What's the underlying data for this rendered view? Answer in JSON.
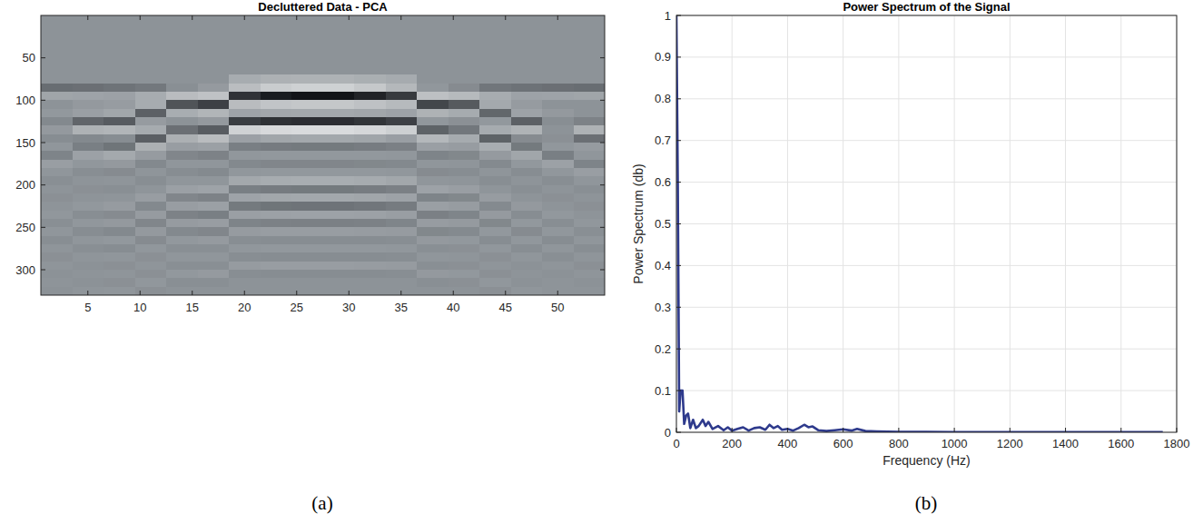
{
  "chart_data": [
    {
      "type": "heatmap",
      "title": "Decluttered Data - PCA",
      "label": "(a)",
      "x": [
        2,
        5,
        8,
        11,
        14,
        17,
        20,
        23,
        26,
        29,
        32,
        35,
        38,
        41,
        44,
        47,
        50,
        53
      ],
      "y": [
        5,
        15,
        25,
        35,
        45,
        55,
        65,
        75,
        85,
        95,
        105,
        115,
        125,
        135,
        145,
        155,
        165,
        175,
        185,
        195,
        205,
        215,
        225,
        235,
        245,
        255,
        265,
        275,
        285,
        295,
        305,
        315,
        325
      ],
      "cells": [
        [
          0,
          0,
          0,
          0,
          0,
          0,
          0,
          0,
          0,
          0,
          0,
          0,
          0,
          0,
          0,
          0,
          0,
          0
        ],
        [
          0,
          0,
          0,
          0,
          0,
          0,
          0,
          0,
          0,
          0,
          0,
          0,
          0,
          0,
          0,
          0,
          0,
          0
        ],
        [
          0,
          0,
          0,
          0,
          0,
          0,
          0,
          0,
          0,
          0,
          0,
          0,
          0,
          0,
          0,
          0,
          0,
          0
        ],
        [
          0,
          0,
          0,
          0,
          0,
          0,
          0,
          0,
          0,
          0,
          0,
          0,
          0,
          0,
          0,
          0,
          0,
          0
        ],
        [
          0,
          0,
          0,
          0,
          0,
          0,
          0,
          0,
          0,
          0,
          0,
          0,
          0,
          0,
          0,
          0,
          0,
          0
        ],
        [
          0,
          0,
          0,
          0,
          0,
          0,
          0,
          0,
          0,
          0,
          0,
          0,
          0,
          0,
          0,
          0,
          0,
          0
        ],
        [
          0,
          0,
          0,
          0,
          0,
          0,
          0,
          0,
          0,
          0,
          0,
          0,
          0,
          0,
          0,
          0,
          0,
          0
        ],
        [
          0,
          0,
          0,
          0,
          0,
          0,
          0.24,
          0.29,
          0.3,
          0.3,
          0.27,
          0.23,
          0,
          0,
          0,
          0,
          0,
          0
        ],
        [
          -0.3,
          -0.28,
          -0.25,
          -0.21,
          -0.03,
          0.07,
          0.41,
          0.55,
          0.6,
          0.6,
          0.51,
          0.36,
          0.04,
          -0.06,
          -0.23,
          -0.26,
          -0.28,
          -0.3
        ],
        [
          0.17,
          0.16,
          0.14,
          0.24,
          0.4,
          0.46,
          -0.76,
          -0.94,
          -1,
          -1,
          -0.88,
          -0.7,
          0.44,
          0.38,
          0.24,
          0.15,
          0.16,
          0.17
        ],
        [
          0,
          0.06,
          0.09,
          0.24,
          -0.5,
          -0.65,
          0.4,
          0.48,
          0.5,
          0.5,
          0.45,
          0.38,
          -0.6,
          -0.45,
          0.21,
          0.08,
          0,
          0
        ],
        [
          0.05,
          0.12,
          0.18,
          -0.4,
          0.25,
          0.33,
          0.16,
          0.19,
          0.2,
          0.2,
          0.18,
          0.15,
          0.3,
          0.23,
          -0.35,
          0.15,
          0.06,
          0
        ],
        [
          -0.08,
          -0.36,
          -0.44,
          0.08,
          0,
          0.06,
          -0.68,
          -0.77,
          -0.8,
          -0.8,
          -0.74,
          -0.65,
          0.04,
          -0.02,
          0.05,
          -0.4,
          -0.04,
          -0.13
        ],
        [
          0.06,
          0.3,
          0.33,
          0.23,
          -0.28,
          -0.43,
          0.61,
          0.68,
          0.7,
          0.7,
          0.66,
          0.59,
          -0.38,
          -0.22,
          0.23,
          0.31,
          0,
          0.3
        ],
        [
          -0.05,
          -0.08,
          -0.05,
          -0.41,
          0.28,
          0.4,
          0.13,
          0.18,
          0.2,
          0.2,
          0.17,
          0.11,
          0.36,
          0.23,
          -0.38,
          -0.06,
          -0.02,
          -0.28
        ],
        [
          0.03,
          -0.16,
          -0.24,
          0.28,
          0.1,
          0.13,
          -0.16,
          -0.19,
          -0.2,
          -0.2,
          -0.18,
          -0.15,
          0.12,
          0.09,
          0.25,
          -0.2,
          0.04,
          0.08
        ],
        [
          -0.12,
          0.14,
          0.21,
          0.08,
          -0.1,
          -0.13,
          0.04,
          0.05,
          0.05,
          0.05,
          0.05,
          0.04,
          -0.12,
          -0.09,
          0.07,
          0.18,
          -0.16,
          0.03
        ],
        [
          0.11,
          0.04,
          0.06,
          -0.08,
          0.03,
          0.03,
          -0.08,
          -0.1,
          -0.1,
          -0.1,
          -0.09,
          -0.08,
          0.03,
          0.02,
          -0.07,
          0.05,
          0.14,
          -0.12
        ],
        [
          0.03,
          -0.04,
          -0.06,
          0.02,
          -0.05,
          -0.07,
          0.04,
          0.05,
          0.05,
          0.05,
          0.05,
          0.04,
          -0.06,
          -0.05,
          0.02,
          -0.05,
          0.04,
          0.11
        ],
        [
          -0.03,
          0.01,
          0.02,
          -0.04,
          0.03,
          0.03,
          0.2,
          0.24,
          0.25,
          0.25,
          0.23,
          0.19,
          0.03,
          0.02,
          -0.04,
          0.01,
          -0.04,
          0.03
        ],
        [
          0.01,
          -0.02,
          -0.03,
          0.02,
          0.13,
          0.16,
          -0.16,
          -0.19,
          -0.2,
          -0.2,
          -0.18,
          -0.15,
          0.15,
          0.11,
          0.02,
          -0.03,
          0.01,
          -0.03
        ],
        [
          -0.02,
          0.01,
          0.02,
          0.1,
          -0.1,
          -0.13,
          0.16,
          0.19,
          0.2,
          0.2,
          0.18,
          0.15,
          -0.12,
          -0.09,
          0.09,
          0.01,
          -0.02,
          0.01
        ],
        [
          0.01,
          0.05,
          0.08,
          -0.08,
          0.1,
          0.13,
          -0.2,
          -0.24,
          -0.25,
          -0.25,
          -0.23,
          -0.19,
          0.12,
          0.09,
          -0.07,
          0.06,
          0.01,
          -0.02
        ],
        [
          0.04,
          -0.04,
          -0.06,
          0.08,
          -0.13,
          -0.16,
          0.12,
          0.14,
          0.15,
          0.15,
          0.14,
          0.11,
          -0.15,
          -0.11,
          0.07,
          -0.05,
          0.05,
          0.01
        ],
        [
          -0.03,
          0.04,
          0.06,
          -0.1,
          0.08,
          0.1,
          -0.12,
          -0.14,
          -0.15,
          -0.15,
          -0.14,
          -0.11,
          0.09,
          0.07,
          -0.09,
          0.05,
          -0.04,
          0.04
        ],
        [
          0.03,
          -0.05,
          -0.08,
          0.06,
          -0.08,
          -0.1,
          0.08,
          0.1,
          0.1,
          0.1,
          0.09,
          0.08,
          -0.09,
          -0.07,
          0.05,
          -0.06,
          0.04,
          -0.03
        ],
        [
          -0.04,
          0.03,
          0.05,
          -0.06,
          0.05,
          0.07,
          -0.04,
          -0.05,
          -0.05,
          -0.05,
          -0.05,
          -0.04,
          0.06,
          0.05,
          -0.05,
          0.04,
          -0.05,
          0.03
        ],
        [
          0.02,
          -0.03,
          -0.05,
          0.04,
          -0.03,
          -0.03,
          0.04,
          0.05,
          0.05,
          0.05,
          0.05,
          0.04,
          -0.03,
          -0.02,
          0.04,
          -0.04,
          0.03,
          -0.04
        ],
        [
          -0.02,
          0.02,
          0.03,
          -0.02,
          0.03,
          0.03,
          -0.04,
          -0.05,
          -0.05,
          -0.05,
          -0.05,
          -0.04,
          0.03,
          0.02,
          -0.02,
          0.03,
          -0.03,
          0.02
        ],
        [
          0.02,
          -0.01,
          -0.02,
          0.02,
          -0.03,
          -0.03,
          0.08,
          0.1,
          0.1,
          0.1,
          0.09,
          0.08,
          -0.03,
          -0.02,
          0.02,
          -0.01,
          0.02,
          -0.02
        ],
        [
          -0.01,
          0.01,
          0.02,
          -0.02,
          0.05,
          0.07,
          -0.04,
          -0.05,
          -0.05,
          -0.05,
          -0.05,
          -0.04,
          0.06,
          0.05,
          -0.02,
          0.01,
          -0.01,
          0.02
        ],
        [
          0.01,
          -0.01,
          -0.02,
          0.04,
          -0.03,
          -0.03,
          0,
          0,
          0,
          0,
          0,
          0,
          -0.03,
          -0.02,
          0.04,
          -0.01,
          0.01,
          -0.01
        ],
        [
          -0.01,
          0.02,
          0.03,
          -0.02,
          0,
          0,
          0,
          0,
          0,
          0,
          0,
          0,
          0,
          0,
          -0.02,
          0.03,
          0.01,
          0.01
        ]
      ],
      "color_range": [
        -1,
        1
      ],
      "xlim": [
        0.5,
        54.5
      ],
      "ylim": [
        0,
        330
      ],
      "xticks": [
        5,
        10,
        15,
        20,
        25,
        30,
        35,
        40,
        45,
        50
      ],
      "yticks": [
        50,
        100,
        150,
        200,
        250,
        300
      ],
      "grid": false
    },
    {
      "type": "line",
      "title": "Power Spectrum of the Signal",
      "label": "(b)",
      "x_label": "Frequency (Hz)",
      "y_label": "Power Spectrum (db)",
      "x": [
        0,
        5,
        10,
        15,
        22,
        28,
        35,
        42,
        50,
        60,
        70,
        80,
        95,
        105,
        115,
        130,
        150,
        170,
        185,
        200,
        220,
        240,
        260,
        280,
        300,
        320,
        335,
        350,
        365,
        380,
        400,
        420,
        440,
        460,
        475,
        490,
        510,
        540,
        570,
        600,
        630,
        650,
        680,
        720,
        800,
        900,
        1000,
        1200,
        1400,
        1600,
        1750
      ],
      "values": [
        1,
        0.6,
        0.05,
        0.1,
        0.1,
        0.02,
        0.04,
        0.045,
        0.01,
        0.03,
        0.01,
        0.015,
        0.03,
        0.015,
        0.025,
        0.008,
        0.015,
        0.005,
        0.012,
        0.004,
        0.008,
        0.012,
        0.004,
        0.01,
        0.012,
        0.006,
        0.018,
        0.01,
        0.015,
        0.006,
        0.008,
        0.004,
        0.01,
        0.018,
        0.012,
        0.014,
        0.005,
        0.003,
        0.005,
        0.007,
        0.004,
        0.008,
        0.003,
        0.002,
        0.001,
        0.001,
        0.0005,
        0.0005,
        0.0003,
        0.0002,
        0.0002
      ],
      "color": "#2e3a8c",
      "line_style": "solid",
      "xlim": [
        0,
        1800
      ],
      "ylim": [
        0,
        1
      ],
      "xticks": [
        0,
        200,
        400,
        600,
        800,
        1000,
        1200,
        1400,
        1600,
        1800
      ],
      "yticks": [
        0,
        0.1,
        0.2,
        0.3,
        0.4,
        0.5,
        0.6,
        0.7,
        0.8,
        0.9,
        1
      ],
      "grid": true
    }
  ]
}
